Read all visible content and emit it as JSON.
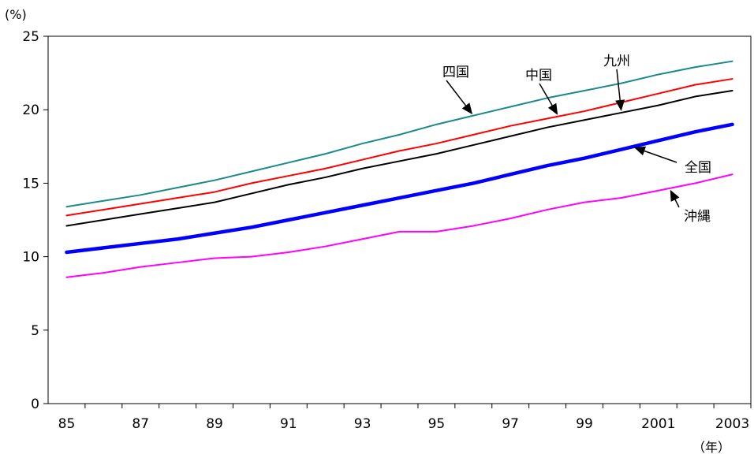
{
  "chart_data": {
    "type": "line",
    "y_unit_label": "(%)",
    "x_unit_label": "（年）",
    "ylim": [
      0,
      25
    ],
    "y_ticks": [
      "0",
      "5",
      "10",
      "15",
      "20",
      "25"
    ],
    "x_ticks": [
      "85",
      "87",
      "89",
      "91",
      "93",
      "95",
      "97",
      "99",
      "2001",
      "2003"
    ],
    "x_tick_years": [
      1985,
      1987,
      1989,
      1991,
      1993,
      1995,
      1997,
      1999,
      2001,
      2003
    ],
    "x_years": [
      1985,
      1986,
      1987,
      1988,
      1989,
      1990,
      1991,
      1992,
      1993,
      1994,
      1995,
      1996,
      1997,
      1998,
      1999,
      2000,
      2001,
      2002,
      2003
    ],
    "grid": false,
    "series": [
      {
        "name": "四国",
        "color": "#1a8a8a",
        "values": [
          13.4,
          13.8,
          14.2,
          14.7,
          15.2,
          15.8,
          16.4,
          17.0,
          17.7,
          18.3,
          19.0,
          19.6,
          20.2,
          20.8,
          21.3,
          21.8,
          22.4,
          22.9,
          23.3
        ]
      },
      {
        "name": "中国",
        "color": "#ff0000",
        "values": [
          12.8,
          13.2,
          13.6,
          14.0,
          14.4,
          15.0,
          15.5,
          16.0,
          16.6,
          17.2,
          17.7,
          18.3,
          18.9,
          19.4,
          19.9,
          20.5,
          21.1,
          21.7,
          22.1
        ]
      },
      {
        "name": "九州",
        "color": "#000000",
        "values": [
          12.1,
          12.5,
          12.9,
          13.3,
          13.7,
          14.3,
          14.9,
          15.4,
          16.0,
          16.5,
          17.0,
          17.6,
          18.2,
          18.8,
          19.3,
          19.8,
          20.3,
          20.9,
          21.3
        ]
      },
      {
        "name": "全国",
        "color": "#0000ff",
        "values": [
          10.3,
          10.6,
          10.9,
          11.2,
          11.6,
          12.0,
          12.5,
          13.0,
          13.5,
          14.0,
          14.5,
          15.0,
          15.6,
          16.2,
          16.7,
          17.3,
          17.9,
          18.5,
          19.0
        ]
      },
      {
        "name": "沖縄",
        "color": "#ff00ff",
        "values": [
          8.6,
          8.9,
          9.3,
          9.6,
          9.9,
          10.0,
          10.3,
          10.7,
          11.2,
          11.7,
          11.7,
          12.1,
          12.6,
          13.2,
          13.7,
          14.0,
          14.5,
          15.0,
          15.6
        ]
      }
    ]
  }
}
